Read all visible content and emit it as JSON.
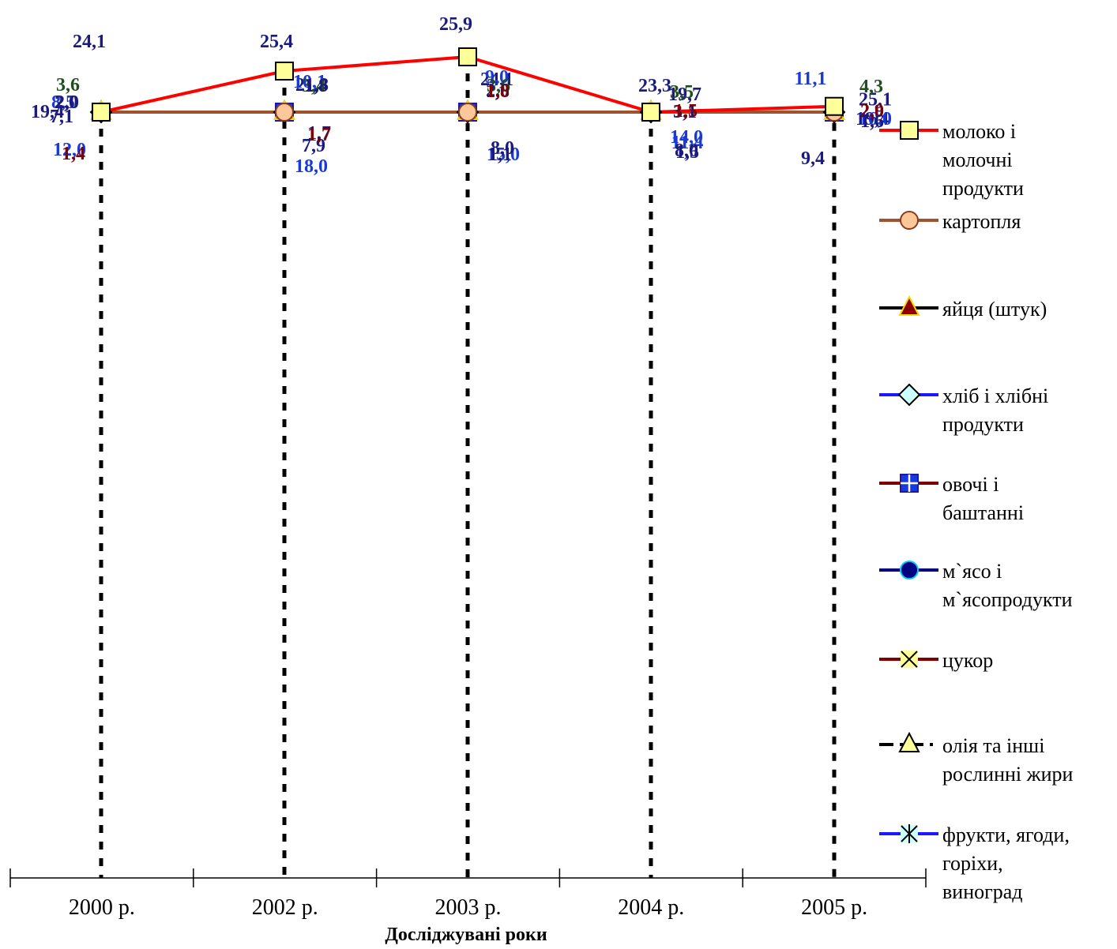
{
  "chart_data": {
    "type": "line",
    "title": "",
    "xlabel": "Досліджувані роки",
    "ylabel": "",
    "categories": [
      "2000 р.",
      "2002 р.",
      "2003 р.",
      "2004 р.",
      "2005 р."
    ],
    "ylim": [
      0,
      28
    ],
    "grid": false,
    "legend_position": "right",
    "series": [
      {
        "name": "молоко і молочні продукти",
        "legend_lines": [
          "молоко і",
          "молочні",
          "продукти"
        ],
        "values": [
          24.1,
          25.4,
          25.9,
          23.3,
          25.1
        ],
        "labels": [
          "24,1",
          "25,4",
          "25,9",
          "23,3",
          "25,1"
        ],
        "color": "#ff0000",
        "label_color": "#1a1a80",
        "marker": "square",
        "marker_fill": "#ffff99",
        "dash": "solid"
      },
      {
        "name": "картопля",
        "legend_lines": [
          "картопля"
        ],
        "values": [
          19.4,
          21.8,
          24.1,
          19.7,
          19.4
        ],
        "labels": [
          "19,4",
          "21,8",
          "24,1",
          "19,7",
          "19,4"
        ],
        "color": "#a0522d",
        "label_color": "#1a1a80",
        "marker": "circle",
        "marker_fill": "#fcc89a",
        "dash": "solid"
      },
      {
        "name": "яйця (штук)",
        "legend_lines": [
          "яйця (штук)"
        ],
        "values": [
          12.0,
          18.0,
          15.0,
          14.0,
          16.0
        ],
        "labels": [
          "12,0",
          "18,0",
          "15,0",
          "14,0",
          "16,0"
        ],
        "color": "#000000",
        "label_color": "#1a3ad8",
        "marker": "triangle",
        "marker_fill": "#8b0000",
        "dash": "solid"
      },
      {
        "name": "хліб і хлібні продукти",
        "legend_lines": [
          "хліб і хлібні",
          "продукти"
        ],
        "values": [
          8.5,
          10.1,
          9.0,
          11.4,
          11.1
        ],
        "labels": [
          "8,5",
          "10,1",
          "9,0",
          "11,4",
          "11,1"
        ],
        "color": "#1a1aff",
        "label_color": "#1a3ad8",
        "marker": "diamond",
        "marker_fill": "#ccffff",
        "dash": "solid"
      },
      {
        "name": "овочі і баштанні",
        "legend_lines": [
          "овочі і",
          "баштанні"
        ],
        "values": [
          7.1,
          7.9,
          8.0,
          8.0,
          9.4
        ],
        "labels": [
          "7,1",
          "7,9",
          "8,0",
          "8,0",
          "9,4"
        ],
        "color": "#800000",
        "label_color": "#1a1a80",
        "marker": "plus-square",
        "marker_fill": "#1a3ae0",
        "dash": "solid"
      },
      {
        "name": "м`ясо і м`ясопродукти",
        "legend_lines": [
          "м`ясо і",
          "м`ясопродукти"
        ],
        "values": [
          3.6,
          3.4,
          3.6,
          3.5,
          4.3
        ],
        "labels": [
          "3,6",
          "3,4",
          "3,6",
          "3,5",
          "4,3"
        ],
        "color": "#000080",
        "label_color": "#1f4f1f",
        "marker": "dot",
        "marker_fill": "#000080",
        "dash": "solid"
      },
      {
        "name": "цукор",
        "legend_lines": [
          "цукор"
        ],
        "values": [
          2.0,
          1.7,
          2.0,
          3.1,
          2.9
        ],
        "labels": [
          "2,0",
          "1,7",
          "2,0",
          "3,1",
          "2,9"
        ],
        "color": "#800000",
        "label_color": "#1a1a80",
        "marker": "x",
        "marker_fill": "#ffff99",
        "dash": "solid"
      },
      {
        "name": "олія та інші рослинні жири",
        "legend_lines": [
          "олія та інші",
          "рослинні жири"
        ],
        "values": [
          1.4,
          1.7,
          1.8,
          1.5,
          2.0
        ],
        "labels": [
          "1,4",
          "1,7",
          "1,8",
          "1,5",
          "2,0"
        ],
        "color": "#000000",
        "label_color": "#800000",
        "marker": "triangle",
        "marker_fill": "#ffff99",
        "dash": "dashdot"
      },
      {
        "name": "фрукти, ягоди, горіхи, виноград",
        "legend_lines": [
          "фрукти, ягоди,",
          "горіхи,",
          "виноград"
        ],
        "values": [
          2.0,
          1.8,
          1.1,
          1.5,
          1.6
        ],
        "labels": [
          "2,0",
          "1,8",
          "1,1",
          "1,5",
          "1,6"
        ],
        "color": "#1a1aff",
        "label_color": "#1a1a80",
        "marker": "star",
        "marker_fill": "#ccffff",
        "dash": "solid"
      }
    ]
  }
}
